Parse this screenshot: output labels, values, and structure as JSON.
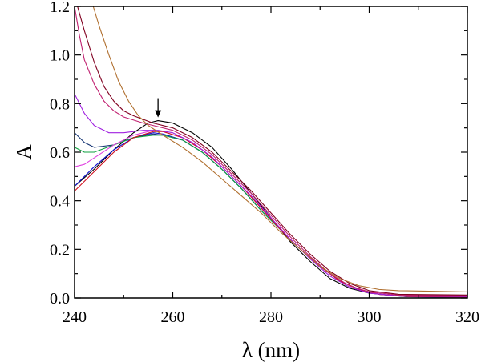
{
  "chart_data": {
    "type": "line",
    "title": "",
    "xlabel": "λ (nm)",
    "ylabel": "A",
    "xlim": [
      240,
      320
    ],
    "ylim": [
      0.0,
      1.2
    ],
    "x_ticks": [
      "240",
      "260",
      "280",
      "300",
      "320"
    ],
    "y_ticks": [
      "0.0",
      "0.2",
      "0.4",
      "0.6",
      "0.8",
      "1.0",
      "1.2"
    ],
    "grid": false,
    "annotation": {
      "type": "arrow",
      "x": 257,
      "y": 0.73,
      "direction": "down"
    },
    "series": [
      {
        "name": "black",
        "color": "#000000",
        "points": [
          [
            240,
            0.46
          ],
          [
            244,
            0.53
          ],
          [
            248,
            0.61
          ],
          [
            252,
            0.68
          ],
          [
            255,
            0.72
          ],
          [
            257,
            0.73
          ],
          [
            260,
            0.72
          ],
          [
            264,
            0.68
          ],
          [
            268,
            0.62
          ],
          [
            272,
            0.53
          ],
          [
            276,
            0.43
          ],
          [
            280,
            0.33
          ],
          [
            284,
            0.23
          ],
          [
            288,
            0.15
          ],
          [
            292,
            0.08
          ],
          [
            296,
            0.04
          ],
          [
            300,
            0.02
          ],
          [
            305,
            0.01
          ],
          [
            310,
            0.005
          ],
          [
            320,
            0.005
          ]
        ]
      },
      {
        "name": "blue",
        "color": "#1010d0",
        "points": [
          [
            240,
            0.46
          ],
          [
            244,
            0.54
          ],
          [
            248,
            0.61
          ],
          [
            252,
            0.66
          ],
          [
            256,
            0.68
          ],
          [
            258,
            0.675
          ],
          [
            262,
            0.65
          ],
          [
            266,
            0.6
          ],
          [
            270,
            0.53
          ],
          [
            274,
            0.45
          ],
          [
            278,
            0.36
          ],
          [
            282,
            0.28
          ],
          [
            286,
            0.2
          ],
          [
            290,
            0.13
          ],
          [
            294,
            0.07
          ],
          [
            298,
            0.035
          ],
          [
            302,
            0.015
          ],
          [
            308,
            0.005
          ],
          [
            320,
            0.003
          ]
        ]
      },
      {
        "name": "navy",
        "color": "#103070",
        "points": [
          [
            240,
            0.68
          ],
          [
            242,
            0.64
          ],
          [
            244,
            0.62
          ],
          [
            248,
            0.63
          ],
          [
            252,
            0.66
          ],
          [
            256,
            0.675
          ],
          [
            258,
            0.67
          ],
          [
            262,
            0.65
          ],
          [
            266,
            0.6
          ],
          [
            270,
            0.53
          ],
          [
            274,
            0.45
          ],
          [
            278,
            0.36
          ],
          [
            282,
            0.28
          ],
          [
            286,
            0.2
          ],
          [
            290,
            0.13
          ],
          [
            294,
            0.07
          ],
          [
            298,
            0.035
          ],
          [
            302,
            0.015
          ],
          [
            308,
            0.005
          ],
          [
            320,
            0.003
          ]
        ]
      },
      {
        "name": "green",
        "color": "#10a040",
        "points": [
          [
            240,
            0.62
          ],
          [
            242,
            0.6
          ],
          [
            244,
            0.6
          ],
          [
            248,
            0.63
          ],
          [
            252,
            0.66
          ],
          [
            256,
            0.67
          ],
          [
            258,
            0.67
          ],
          [
            262,
            0.65
          ],
          [
            266,
            0.6
          ],
          [
            270,
            0.53
          ],
          [
            274,
            0.45
          ],
          [
            278,
            0.36
          ],
          [
            282,
            0.28
          ],
          [
            286,
            0.2
          ],
          [
            290,
            0.13
          ],
          [
            294,
            0.07
          ],
          [
            298,
            0.035
          ],
          [
            302,
            0.015
          ],
          [
            308,
            0.006
          ],
          [
            320,
            0.004
          ]
        ]
      },
      {
        "name": "pink",
        "color": "#e040e0",
        "points": [
          [
            240,
            0.54
          ],
          [
            242,
            0.55
          ],
          [
            245,
            0.59
          ],
          [
            248,
            0.63
          ],
          [
            252,
            0.67
          ],
          [
            256,
            0.69
          ],
          [
            258,
            0.685
          ],
          [
            262,
            0.66
          ],
          [
            266,
            0.61
          ],
          [
            270,
            0.54
          ],
          [
            274,
            0.46
          ],
          [
            278,
            0.37
          ],
          [
            282,
            0.28
          ],
          [
            286,
            0.2
          ],
          [
            290,
            0.13
          ],
          [
            294,
            0.07
          ],
          [
            298,
            0.035
          ],
          [
            302,
            0.015
          ],
          [
            308,
            0.006
          ],
          [
            320,
            0.004
          ]
        ]
      },
      {
        "name": "red",
        "color": "#d01020",
        "points": [
          [
            240,
            0.44
          ],
          [
            244,
            0.52
          ],
          [
            248,
            0.6
          ],
          [
            252,
            0.66
          ],
          [
            256,
            0.685
          ],
          [
            258,
            0.685
          ],
          [
            262,
            0.66
          ],
          [
            266,
            0.61
          ],
          [
            270,
            0.54
          ],
          [
            274,
            0.46
          ],
          [
            278,
            0.37
          ],
          [
            282,
            0.28
          ],
          [
            286,
            0.2
          ],
          [
            290,
            0.13
          ],
          [
            294,
            0.07
          ],
          [
            298,
            0.035
          ],
          [
            302,
            0.015
          ],
          [
            308,
            0.006
          ],
          [
            320,
            0.004
          ]
        ]
      },
      {
        "name": "purple",
        "color": "#a020e0",
        "points": [
          [
            240,
            0.84
          ],
          [
            242,
            0.76
          ],
          [
            244,
            0.71
          ],
          [
            247,
            0.68
          ],
          [
            250,
            0.68
          ],
          [
            254,
            0.69
          ],
          [
            257,
            0.69
          ],
          [
            260,
            0.68
          ],
          [
            264,
            0.64
          ],
          [
            268,
            0.58
          ],
          [
            272,
            0.5
          ],
          [
            276,
            0.42
          ],
          [
            280,
            0.33
          ],
          [
            284,
            0.24
          ],
          [
            288,
            0.16
          ],
          [
            292,
            0.09
          ],
          [
            296,
            0.045
          ],
          [
            300,
            0.02
          ],
          [
            306,
            0.008
          ],
          [
            320,
            0.006
          ]
        ]
      },
      {
        "name": "magenta",
        "color": "#c02070",
        "points": [
          [
            240,
            1.2
          ],
          [
            241,
            1.08
          ],
          [
            242,
            0.98
          ],
          [
            244,
            0.88
          ],
          [
            246,
            0.81
          ],
          [
            248,
            0.77
          ],
          [
            250,
            0.745
          ],
          [
            254,
            0.72
          ],
          [
            257,
            0.705
          ],
          [
            260,
            0.69
          ],
          [
            264,
            0.65
          ],
          [
            268,
            0.59
          ],
          [
            272,
            0.51
          ],
          [
            276,
            0.43
          ],
          [
            280,
            0.34
          ],
          [
            284,
            0.25
          ],
          [
            288,
            0.17
          ],
          [
            292,
            0.1
          ],
          [
            296,
            0.05
          ],
          [
            300,
            0.025
          ],
          [
            306,
            0.012
          ],
          [
            320,
            0.01
          ]
        ]
      },
      {
        "name": "maroon",
        "color": "#800020",
        "points": [
          [
            240.6,
            1.2
          ],
          [
            242,
            1.1
          ],
          [
            244,
            0.97
          ],
          [
            246,
            0.87
          ],
          [
            248,
            0.81
          ],
          [
            250,
            0.77
          ],
          [
            252,
            0.75
          ],
          [
            256,
            0.72
          ],
          [
            260,
            0.7
          ],
          [
            264,
            0.66
          ],
          [
            268,
            0.6
          ],
          [
            272,
            0.52
          ],
          [
            276,
            0.44
          ],
          [
            280,
            0.35
          ],
          [
            284,
            0.26
          ],
          [
            288,
            0.18
          ],
          [
            292,
            0.11
          ],
          [
            296,
            0.06
          ],
          [
            300,
            0.03
          ],
          [
            306,
            0.015
          ],
          [
            320,
            0.012
          ]
        ]
      },
      {
        "name": "brown",
        "color": "#b07030",
        "points": [
          [
            243.8,
            1.2
          ],
          [
            245,
            1.12
          ],
          [
            247,
            1.0
          ],
          [
            249,
            0.89
          ],
          [
            251,
            0.81
          ],
          [
            253,
            0.75
          ],
          [
            255,
            0.71
          ],
          [
            258,
            0.67
          ],
          [
            262,
            0.62
          ],
          [
            266,
            0.56
          ],
          [
            270,
            0.49
          ],
          [
            274,
            0.42
          ],
          [
            278,
            0.35
          ],
          [
            282,
            0.27
          ],
          [
            286,
            0.2
          ],
          [
            290,
            0.13
          ],
          [
            294,
            0.08
          ],
          [
            298,
            0.05
          ],
          [
            302,
            0.035
          ],
          [
            306,
            0.03
          ],
          [
            320,
            0.025
          ]
        ]
      }
    ]
  }
}
